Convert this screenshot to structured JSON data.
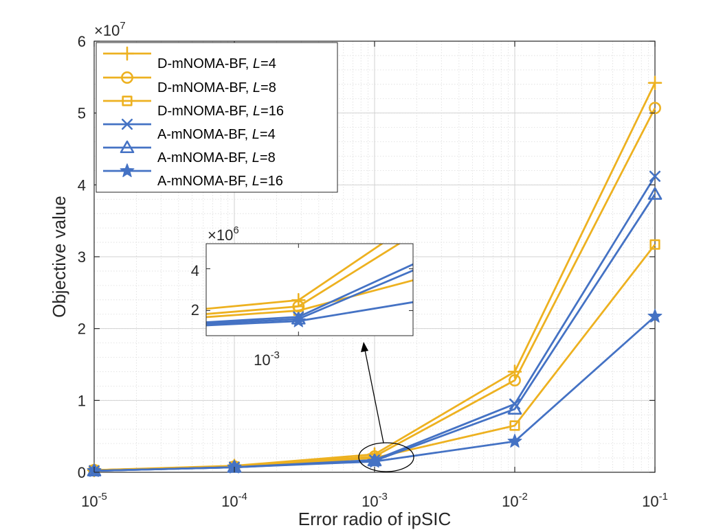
{
  "chart_data": {
    "type": "line",
    "title": "",
    "xlabel": "Error radio of ipSIC",
    "ylabel": "Objective value",
    "xscale": "log",
    "x": [
      1e-05,
      0.0001,
      0.001,
      0.01,
      0.1
    ],
    "x_tick_labels": [
      {
        "base": "10",
        "exp": "-5"
      },
      {
        "base": "10",
        "exp": "-4"
      },
      {
        "base": "10",
        "exp": "-3"
      },
      {
        "base": "10",
        "exp": "-2"
      },
      {
        "base": "10",
        "exp": "-1"
      }
    ],
    "y_tick_labels": [
      "0",
      "1",
      "2",
      "3",
      "4",
      "5",
      "6"
    ],
    "y_multiplier": {
      "base": "×10",
      "exp": "7"
    },
    "ylim": [
      0,
      6
    ],
    "grid": true,
    "legend_position": "top-left",
    "series": [
      {
        "name": "D-mNOMA-BF, ",
        "param": "L",
        "param_value": "=4",
        "color": "#EDB120",
        "marker": "plus",
        "values": [
          0.03,
          0.09,
          0.25,
          1.4,
          5.42
        ]
      },
      {
        "name": "D-mNOMA-BF, ",
        "param": "L",
        "param_value": "=8",
        "color": "#EDB120",
        "marker": "circle",
        "values": [
          0.03,
          0.08,
          0.22,
          1.28,
          5.07
        ]
      },
      {
        "name": "D-mNOMA-BF, ",
        "param": "L",
        "param_value": "=16",
        "color": "#EDB120",
        "marker": "square",
        "values": [
          0.03,
          0.08,
          0.2,
          0.65,
          3.17
        ]
      },
      {
        "name": "A-mNOMA-BF, ",
        "param": "L",
        "param_value": "=4",
        "color": "#4472C4",
        "marker": "x",
        "values": [
          0.02,
          0.07,
          0.17,
          0.95,
          4.12
        ]
      },
      {
        "name": "A-mNOMA-BF, ",
        "param": "L",
        "param_value": "=8",
        "color": "#4472C4",
        "marker": "triangle",
        "values": [
          0.02,
          0.07,
          0.16,
          0.88,
          3.87
        ]
      },
      {
        "name": "A-mNOMA-BF, ",
        "param": "L",
        "param_value": "=16",
        "color": "#4472C4",
        "marker": "star",
        "values": [
          0.02,
          0.07,
          0.15,
          0.43,
          2.17
        ]
      }
    ],
    "inset": {
      "y_multiplier": {
        "base": "×10",
        "exp": "6"
      },
      "y_tick_labels": [
        "2",
        "4"
      ],
      "x_tick_label": {
        "base": "10",
        "exp": "-3"
      },
      "ylim": [
        0.8,
        5.2
      ]
    }
  }
}
